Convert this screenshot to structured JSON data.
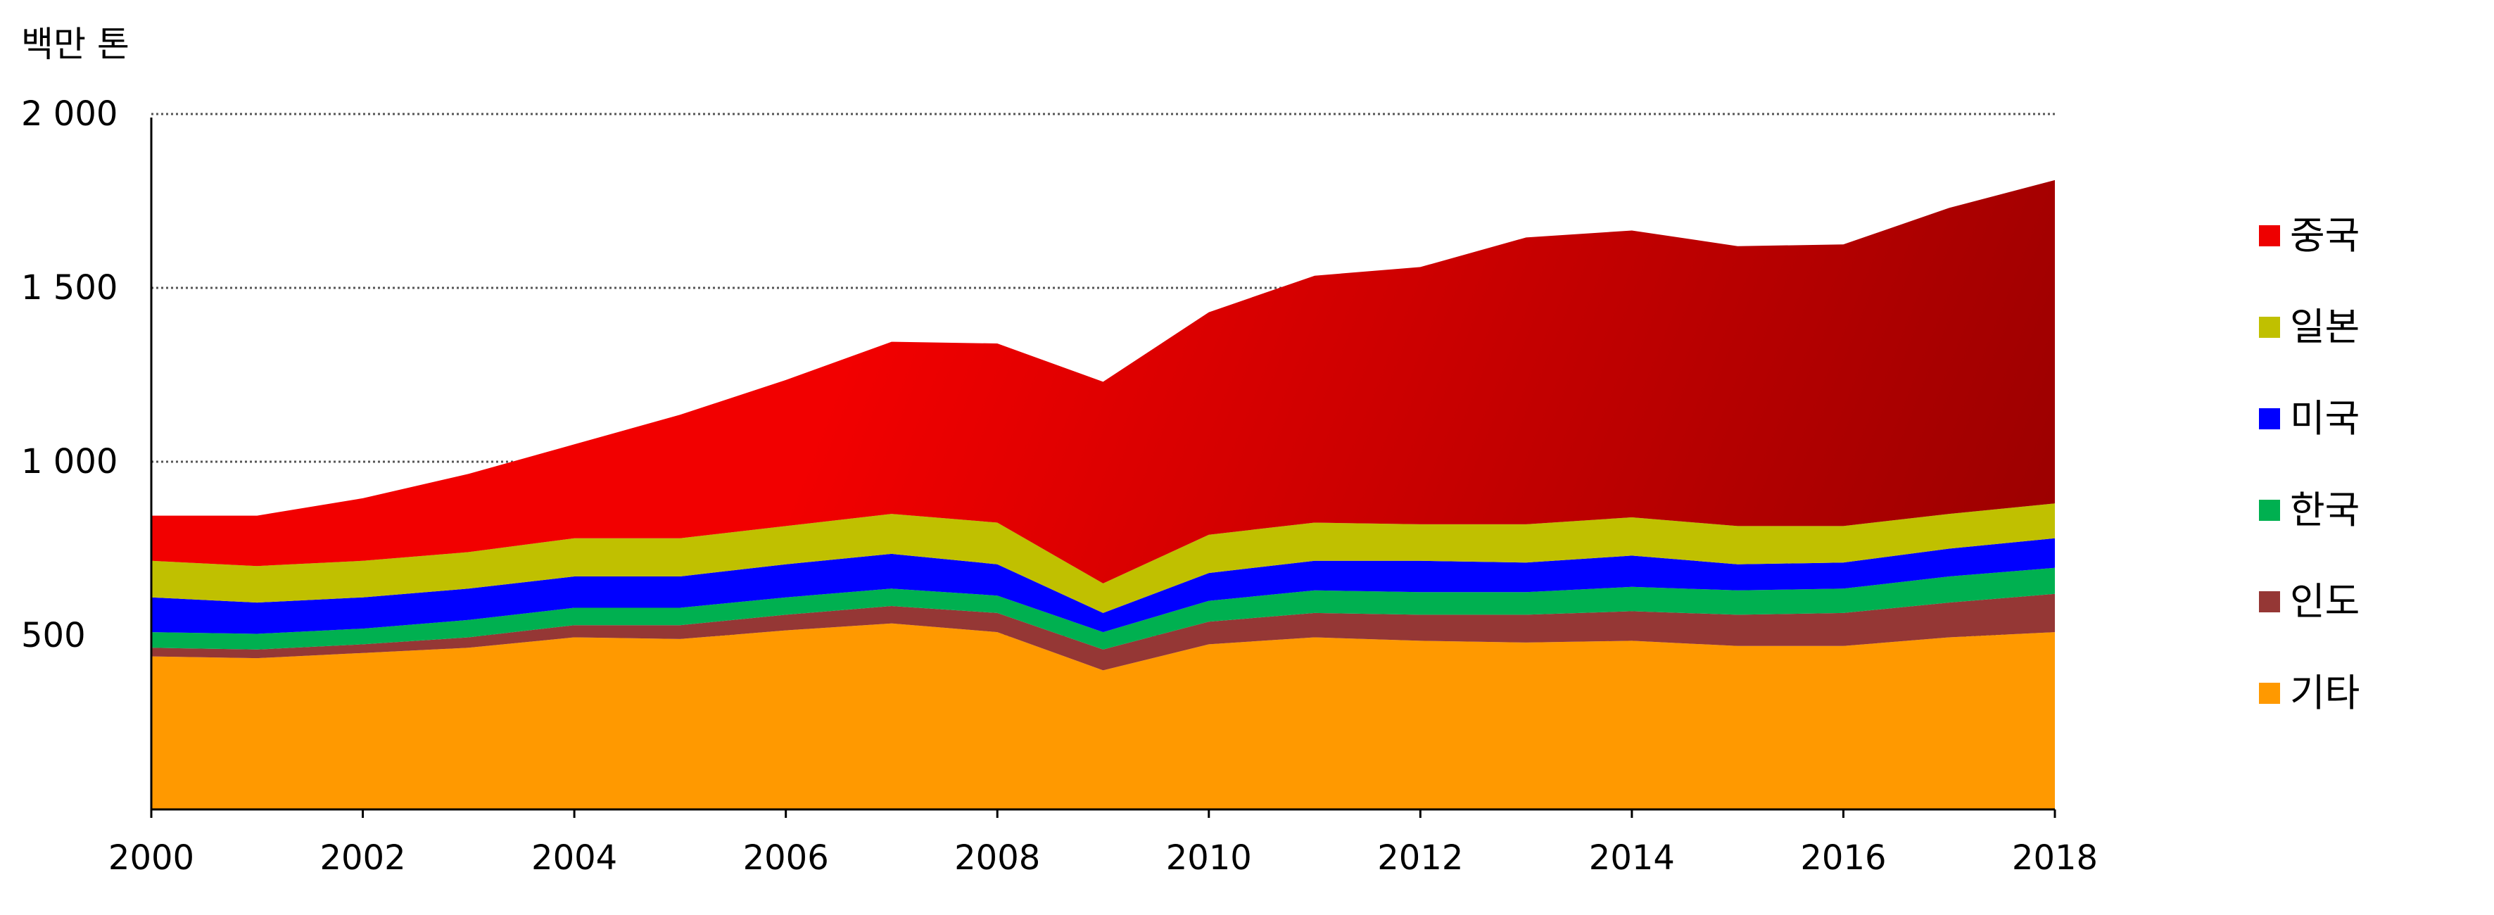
{
  "chart_data": {
    "type": "area",
    "stacked": true,
    "unit_label": "백만 톤",
    "x": [
      2000,
      2001,
      2002,
      2003,
      2004,
      2005,
      2006,
      2007,
      2008,
      2009,
      2010,
      2011,
      2012,
      2013,
      2014,
      2015,
      2016,
      2017,
      2018
    ],
    "x_ticks": [
      "2000",
      "2002",
      "2004",
      "2006",
      "2008",
      "2010",
      "2012",
      "2014",
      "2016",
      "2018"
    ],
    "y_ticks": [
      {
        "value": 500,
        "label": "500"
      },
      {
        "value": 1000,
        "label": "1 000"
      },
      {
        "value": 1500,
        "label": "1 500"
      },
      {
        "value": 2000,
        "label": "2 000"
      }
    ],
    "ylim": [
      0,
      2000
    ],
    "grid": "horizontal dotted",
    "legend_position": "right",
    "series": [
      {
        "name": "기타",
        "color": "#FF9900",
        "values": [
          440,
          435,
          450,
          465,
          495,
          490,
          515,
          535,
          510,
          400,
          475,
          495,
          485,
          480,
          485,
          470,
          470,
          495,
          510
        ]
      },
      {
        "name": "인도",
        "color": "#953735",
        "values": [
          25,
          25,
          25,
          30,
          35,
          40,
          45,
          50,
          55,
          60,
          65,
          70,
          75,
          80,
          85,
          90,
          95,
          100,
          110
        ]
      },
      {
        "name": "한국",
        "color": "#00B050",
        "values": [
          45,
          45,
          45,
          50,
          50,
          50,
          50,
          50,
          50,
          50,
          60,
          65,
          65,
          65,
          70,
          70,
          70,
          75,
          75
        ]
      },
      {
        "name": "미국",
        "color": "#0000FF",
        "values": [
          100,
          90,
          90,
          90,
          90,
          90,
          95,
          100,
          90,
          55,
          80,
          85,
          90,
          85,
          90,
          75,
          75,
          80,
          85
        ]
      },
      {
        "name": "일본",
        "color": "#C0C000",
        "values": [
          105,
          105,
          105,
          105,
          110,
          110,
          110,
          115,
          120,
          85,
          110,
          110,
          105,
          110,
          110,
          110,
          105,
          100,
          100
        ]
      },
      {
        "name": "중국",
        "color": "#EE0000",
        "values": [
          130,
          145,
          180,
          225,
          270,
          355,
          420,
          495,
          515,
          580,
          640,
          710,
          740,
          825,
          825,
          805,
          810,
          880,
          930
        ]
      }
    ]
  }
}
